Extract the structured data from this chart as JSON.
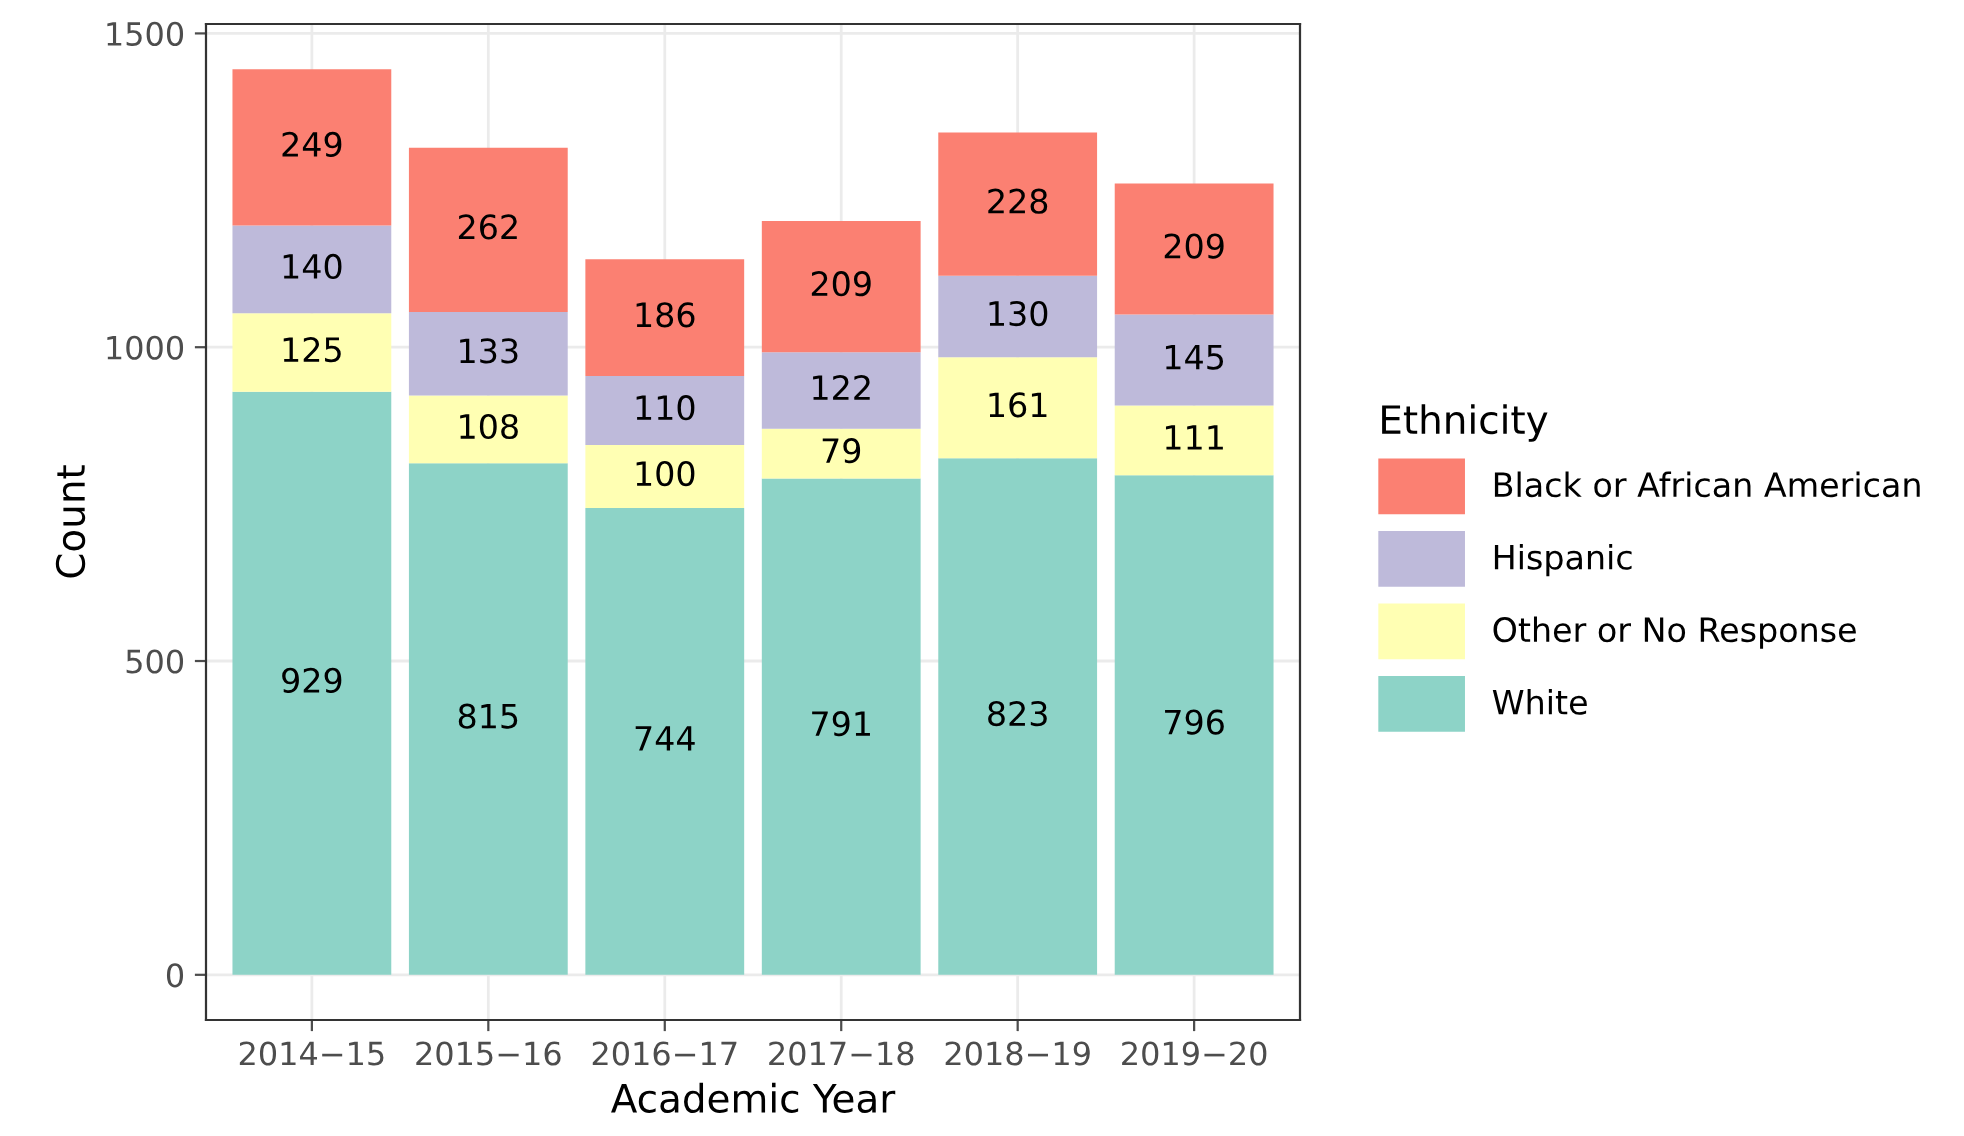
{
  "chart_data": {
    "type": "bar",
    "stacked": true,
    "xlabel": "Academic Year",
    "ylabel": "Count",
    "legend_title": "Ethnicity",
    "legend": "right",
    "grid": true,
    "data_labels": true,
    "categories": [
      "2014−15",
      "2015−16",
      "2016−17",
      "2017−18",
      "2018−19",
      "2019−20"
    ],
    "ylim": [
      -72,
      1515
    ],
    "yticks": [
      0,
      500,
      1000,
      1500
    ],
    "series": [
      {
        "name": "White",
        "color": "#8dd3c7",
        "values": [
          929,
          815,
          744,
          791,
          823,
          796
        ]
      },
      {
        "name": "Other or No Response",
        "color": "#ffffb3",
        "values": [
          125,
          108,
          100,
          79,
          161,
          111
        ]
      },
      {
        "name": "Hispanic",
        "color": "#bebada",
        "values": [
          140,
          133,
          110,
          122,
          130,
          145
        ]
      },
      {
        "name": "Black or African American",
        "color": "#fb8072",
        "values": [
          249,
          262,
          186,
          209,
          228,
          209
        ]
      }
    ]
  }
}
